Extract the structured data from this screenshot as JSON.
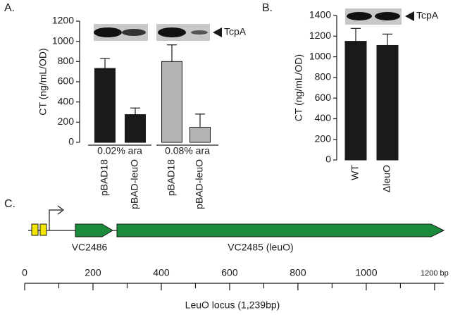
{
  "panel_labels": [
    "A.",
    "B.",
    "C."
  ],
  "chart_data": [
    {
      "type": "bar",
      "ylabel": "CT (ng/mL/OD)",
      "annotation": "TcpA",
      "categories": [
        "pBAD18",
        "pBAD-leuO",
        "pBAD18",
        "pBAD-leuO"
      ],
      "groups": [
        "0.02% ara",
        "0.08% ara"
      ],
      "values": [
        732,
        275,
        800,
        150
      ],
      "errors": [
        98,
        65,
        165,
        130
      ],
      "colors": [
        "#1a1a1a",
        "#1a1a1a",
        "#b3b3b3",
        "#b3b3b3"
      ],
      "ylim": [
        0,
        1200
      ],
      "yticks": [
        0,
        200,
        400,
        600,
        800,
        1000,
        1200
      ]
    },
    {
      "type": "bar",
      "ylabel": "CT (ng/mL/OD)",
      "annotation": "TcpA",
      "categories": [
        "WT",
        "ΔleuO"
      ],
      "values": [
        1150,
        1110
      ],
      "errors": [
        125,
        110
      ],
      "colors": [
        "#1a1a1a",
        "#1a1a1a"
      ],
      "ylim": [
        0,
        1400
      ],
      "yticks": [
        0,
        200,
        400,
        600,
        800,
        1000,
        1200,
        1400
      ]
    }
  ],
  "diagram": {
    "genes": [
      "VC2486",
      "VC2485 (leuO)"
    ],
    "scale": {
      "xlim": [
        0,
        1227
      ],
      "xticks": [
        0,
        200,
        400,
        600,
        800,
        1000,
        {
          "value": 1200,
          "label": "1200 bp"
        }
      ],
      "title": "LeuO locus (1,239bp)"
    }
  }
}
